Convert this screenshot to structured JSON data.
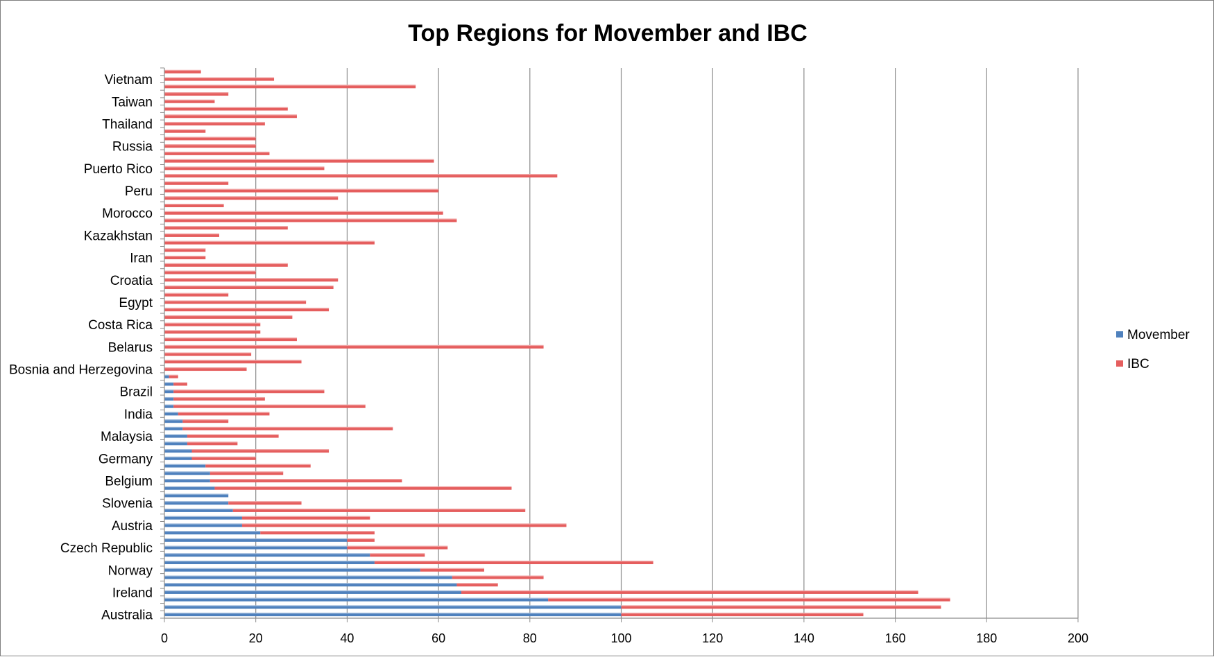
{
  "chart_data": {
    "type": "bar",
    "orientation": "horizontal",
    "stacked": true,
    "title": "Top Regions for Movember and IBC",
    "xlim": [
      0,
      200
    ],
    "xticks": [
      0,
      20,
      40,
      60,
      80,
      100,
      120,
      140,
      160,
      180,
      200
    ],
    "grid": "vertical major gridlines",
    "legend_position": "right",
    "categories": [
      "Australia",
      "",
      "",
      "Ireland",
      "",
      "",
      "Norway",
      "",
      "",
      "Czech Republic",
      "",
      "",
      "Austria",
      "",
      "",
      "Slovenia",
      "",
      "",
      "Belgium",
      "",
      "",
      "Germany",
      "",
      "",
      "Malaysia",
      "",
      "",
      "India",
      "",
      "",
      "Brazil",
      "",
      "",
      "Bosnia and Herzegovina",
      "",
      "",
      "Belarus",
      "",
      "",
      "Costa Rica",
      "",
      "",
      "Egypt",
      "",
      "",
      "Croatia",
      "",
      "",
      "Iran",
      "",
      "",
      "Kazakhstan",
      "",
      "",
      "Morocco",
      "",
      "",
      "Peru",
      "",
      "",
      "Puerto Rico",
      "",
      "",
      "Russia",
      "",
      "",
      "Thailand",
      "",
      "",
      "Taiwan",
      "",
      "",
      "Vietnam",
      ""
    ],
    "series": [
      {
        "name": "Movember",
        "color": "#4f81bd",
        "values": [
          100,
          100,
          84,
          65,
          64,
          63,
          56,
          46,
          45,
          40,
          40,
          21,
          17,
          17,
          15,
          14,
          14,
          11,
          10,
          10,
          9,
          6,
          6,
          5,
          5,
          4,
          4,
          3,
          2,
          2,
          2,
          2,
          1,
          0,
          0,
          0,
          0,
          0,
          0,
          0,
          0,
          0,
          0,
          0,
          0,
          0,
          0,
          0,
          0,
          0,
          0,
          0,
          0,
          0,
          0,
          0,
          0,
          0,
          0,
          0,
          0,
          0,
          0,
          0,
          0,
          0,
          0,
          0,
          0,
          0,
          0,
          0,
          0,
          0
        ]
      },
      {
        "name": "IBC",
        "color": "#e55e5e",
        "values": [
          53,
          70,
          88,
          100,
          9,
          20,
          14,
          61,
          12,
          22,
          6,
          25,
          71,
          28,
          64,
          16,
          0,
          65,
          42,
          16,
          23,
          14,
          30,
          11,
          20,
          46,
          10,
          20,
          42,
          20,
          33,
          3,
          2,
          18,
          30,
          19,
          83,
          29,
          21,
          21,
          28,
          36,
          31,
          14,
          37,
          38,
          20,
          27,
          9,
          9,
          46,
          12,
          27,
          64,
          61,
          13,
          38,
          60,
          14,
          86,
          35,
          59,
          23,
          20,
          20,
          9,
          22,
          29,
          27,
          11,
          14,
          55,
          24,
          8
        ]
      }
    ]
  }
}
